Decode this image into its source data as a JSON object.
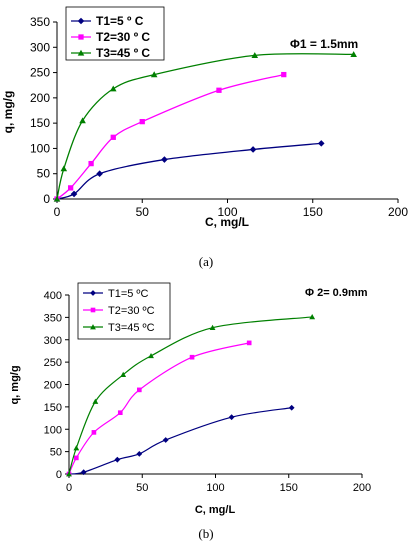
{
  "chart_data": [
    {
      "type": "line",
      "caption": "(a)",
      "annotation": "Φ1 = 1.5mm",
      "xlabel": "C, mg/L",
      "ylabel": "q, mg/g",
      "xlim": [
        0,
        200
      ],
      "ylim": [
        0,
        350
      ],
      "xticks": [
        0,
        50,
        100,
        150,
        200
      ],
      "yticks": [
        0,
        50,
        100,
        150,
        200,
        250,
        300,
        350
      ],
      "legend_position": "top-left",
      "grid": false,
      "series": [
        {
          "name": "T1=5 º C",
          "color": "#000080",
          "marker": "diamond",
          "x": [
            0,
            10,
            25,
            63,
            115,
            155
          ],
          "y": [
            0,
            10,
            50,
            78,
            98,
            110
          ]
        },
        {
          "name": "T2=30 º C",
          "color": "#ff00ff",
          "marker": "square",
          "x": [
            0,
            8,
            20,
            33,
            50,
            95,
            133
          ],
          "y": [
            0,
            22,
            70,
            122,
            153,
            215,
            246
          ]
        },
        {
          "name": "T3=45 º C",
          "color": "#008000",
          "marker": "triangle",
          "x": [
            0,
            4,
            15,
            33,
            57,
            116,
            174
          ],
          "y": [
            0,
            60,
            155,
            218,
            246,
            284,
            286
          ]
        }
      ]
    },
    {
      "type": "line",
      "caption": "(b)",
      "annotation": "Φ 2= 0.9mm",
      "xlabel": "C, mg/L",
      "ylabel": "q, mg/g",
      "xlim": [
        0,
        200
      ],
      "ylim": [
        0,
        400
      ],
      "xticks": [
        0,
        50,
        100,
        150,
        200
      ],
      "yticks": [
        0,
        50,
        100,
        150,
        200,
        250,
        300,
        350,
        400
      ],
      "legend_position": "top-left",
      "grid": false,
      "series": [
        {
          "name": "T1=5 ºC",
          "color": "#000080",
          "marker": "diamond",
          "x": [
            0,
            10,
            33,
            48,
            66,
            111,
            152
          ],
          "y": [
            0,
            4,
            32,
            45,
            76,
            127,
            148
          ]
        },
        {
          "name": "T2=30 ºC",
          "color": "#ff00ff",
          "marker": "square",
          "x": [
            0,
            5,
            17,
            35,
            48,
            84,
            123
          ],
          "y": [
            0,
            36,
            93,
            137,
            188,
            261,
            293
          ]
        },
        {
          "name": "T3=45 ºC",
          "color": "#008000",
          "marker": "triangle",
          "x": [
            0,
            5,
            18,
            37,
            56,
            98,
            166
          ],
          "y": [
            0,
            58,
            162,
            222,
            264,
            327,
            351
          ]
        }
      ]
    }
  ]
}
